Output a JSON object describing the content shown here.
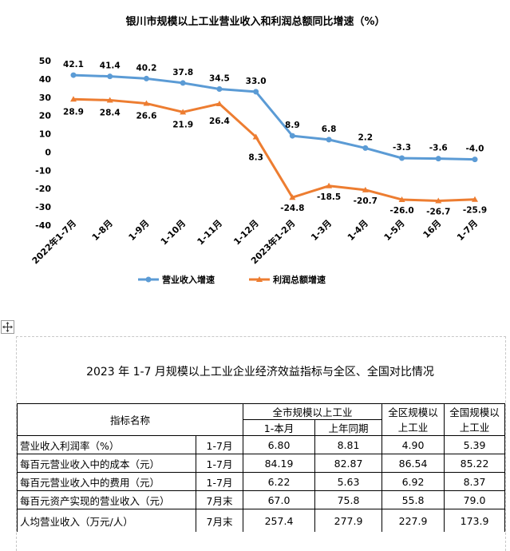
{
  "chart_data": {
    "type": "line",
    "title": "银川市规模以上工业营业收入和利润总额同比增速（%）",
    "categories": [
      "2022年1-7月",
      "1-8月",
      "1-9月",
      "1-10月",
      "1-11月",
      "1-12月",
      "2023年1-2月",
      "1-3月",
      "1-4月",
      "1-5月",
      "16月",
      "1-7月"
    ],
    "ylim": [
      -40,
      50
    ],
    "yticks": [
      50,
      40,
      30,
      20,
      10,
      0,
      -10,
      -20,
      -30,
      -40
    ],
    "series": [
      {
        "name": "营业收入增速",
        "color": "#5b9bd5",
        "values": [
          42.1,
          41.4,
          40.2,
          37.8,
          34.5,
          33.0,
          8.9,
          6.8,
          2.2,
          -3.3,
          -3.6,
          -4.0
        ],
        "labels": [
          "42.1",
          "41.4",
          "40.2",
          "37.8",
          "34.5",
          "33.0",
          "8.9",
          "6.8",
          "2.2",
          "-3.3",
          "-3.6",
          "-4.0"
        ]
      },
      {
        "name": "利润总额增速",
        "color": "#ed7d31",
        "values": [
          28.9,
          28.4,
          26.6,
          21.9,
          26.4,
          8.3,
          -24.8,
          -18.5,
          -20.7,
          -26.0,
          -26.7,
          -25.9
        ],
        "labels": [
          "28.9",
          "28.4",
          "26.6",
          "21.9",
          "26.4",
          "8.3",
          "-24.8",
          "-18.5",
          "-20.7",
          "-26.0",
          "-26.7",
          "-25.9"
        ]
      }
    ],
    "legend_position": "bottom",
    "grid": false
  },
  "table": {
    "title": "2023 年 1-7 月规模以上工业企业经济效益指标与全区、全国对比情况",
    "header": {
      "indicator": "指标名称",
      "city_group": "全市规模以上工业",
      "city_current": "1-本月",
      "city_last_year": "上年同期",
      "region": "全区规模以上工业",
      "nation": "全国规模以上工业"
    },
    "rows": [
      {
        "name": "营业收入利润率（%）",
        "period": "1-7月",
        "current": "6.80",
        "last_year": "8.81",
        "region": "4.90",
        "nation": "5.39"
      },
      {
        "name": "每百元营业收入中的成本（元）",
        "period": "1-7月",
        "current": "84.19",
        "last_year": "82.87",
        "region": "86.54",
        "nation": "85.22"
      },
      {
        "name": "每百元营业收入中的费用（元）",
        "period": "1-7月",
        "current": "6.22",
        "last_year": "5.63",
        "region": "6.92",
        "nation": "8.37"
      },
      {
        "name": "每百元资产实现的营业收入（元）",
        "period": "7月末",
        "current": "67.0",
        "last_year": "75.8",
        "region": "55.8",
        "nation": "79.0"
      },
      {
        "name": "人均营业收入（万元/人）",
        "period": "7月末",
        "current": "257.4",
        "last_year": "277.9",
        "region": "227.9",
        "nation": "173.9"
      }
    ]
  }
}
